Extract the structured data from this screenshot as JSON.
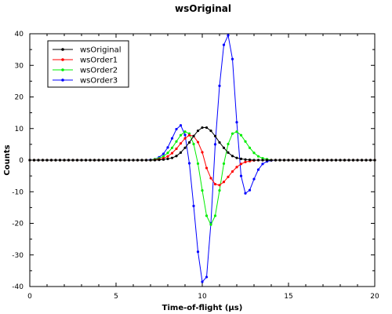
{
  "chart_data": {
    "type": "line",
    "title": "wsOriginal",
    "xlabel": "Time-of-flight (µs)",
    "ylabel": "Counts",
    "xlim": [
      0,
      20
    ],
    "ylim": [
      -40,
      40
    ],
    "x_ticks": [
      0,
      5,
      10,
      15,
      20
    ],
    "y_ticks": [
      -40,
      -30,
      -20,
      -10,
      0,
      10,
      20,
      30,
      40
    ],
    "grid": false,
    "legend_position": "top-left",
    "series": [
      {
        "name": "wsOriginal",
        "color": "#000000",
        "points": [
          [
            0,
            0
          ],
          [
            0.25,
            0
          ],
          [
            0.5,
            0
          ],
          [
            0.75,
            0
          ],
          [
            1,
            0
          ],
          [
            1.25,
            0
          ],
          [
            1.5,
            0
          ],
          [
            1.75,
            0
          ],
          [
            2,
            0
          ],
          [
            2.25,
            0
          ],
          [
            2.5,
            0
          ],
          [
            2.75,
            0
          ],
          [
            3,
            0
          ],
          [
            3.25,
            0
          ],
          [
            3.5,
            0
          ],
          [
            3.75,
            0
          ],
          [
            4,
            0
          ],
          [
            4.25,
            0
          ],
          [
            4.5,
            0
          ],
          [
            4.75,
            0
          ],
          [
            5,
            0
          ],
          [
            5.25,
            0
          ],
          [
            5.5,
            0
          ],
          [
            5.75,
            0
          ],
          [
            6,
            0
          ],
          [
            6.25,
            0
          ],
          [
            6.5,
            0
          ],
          [
            6.75,
            0
          ],
          [
            7,
            0
          ],
          [
            7.25,
            0
          ],
          [
            7.5,
            0.1
          ],
          [
            7.75,
            0.2
          ],
          [
            8,
            0.4
          ],
          [
            8.25,
            0.7
          ],
          [
            8.5,
            1.3
          ],
          [
            8.75,
            2.4
          ],
          [
            9,
            3.9
          ],
          [
            9.25,
            5.6
          ],
          [
            9.5,
            7.6
          ],
          [
            9.75,
            9.3
          ],
          [
            10,
            10.3
          ],
          [
            10.25,
            10.3
          ],
          [
            10.5,
            9.3
          ],
          [
            10.75,
            7.6
          ],
          [
            11,
            5.6
          ],
          [
            11.25,
            3.9
          ],
          [
            11.5,
            2.4
          ],
          [
            11.75,
            1.3
          ],
          [
            12,
            0.7
          ],
          [
            12.25,
            0.4
          ],
          [
            12.5,
            0.2
          ],
          [
            12.75,
            0.1
          ],
          [
            13,
            0
          ],
          [
            13.25,
            0
          ],
          [
            13.5,
            0
          ],
          [
            13.75,
            0
          ],
          [
            14,
            0
          ],
          [
            14.25,
            0
          ],
          [
            14.5,
            0
          ],
          [
            14.75,
            0
          ],
          [
            15,
            0
          ],
          [
            15.25,
            0
          ],
          [
            15.5,
            0
          ],
          [
            15.75,
            0
          ],
          [
            16,
            0
          ],
          [
            16.25,
            0
          ],
          [
            16.5,
            0
          ],
          [
            16.75,
            0
          ],
          [
            17,
            0
          ],
          [
            17.25,
            0
          ],
          [
            17.5,
            0
          ],
          [
            17.75,
            0
          ],
          [
            18,
            0
          ],
          [
            18.25,
            0
          ],
          [
            18.5,
            0
          ],
          [
            18.75,
            0
          ],
          [
            19,
            0
          ],
          [
            19.25,
            0
          ],
          [
            19.5,
            0
          ],
          [
            19.75,
            0
          ],
          [
            20,
            0
          ]
        ]
      },
      {
        "name": "wsOrder1",
        "color": "#ff0000",
        "points": [
          [
            0,
            0
          ],
          [
            0.25,
            0
          ],
          [
            0.5,
            0
          ],
          [
            0.75,
            0
          ],
          [
            1,
            0
          ],
          [
            1.25,
            0
          ],
          [
            1.5,
            0
          ],
          [
            1.75,
            0
          ],
          [
            2,
            0
          ],
          [
            2.25,
            0
          ],
          [
            2.5,
            0
          ],
          [
            2.75,
            0
          ],
          [
            3,
            0
          ],
          [
            3.25,
            0
          ],
          [
            3.5,
            0
          ],
          [
            3.75,
            0
          ],
          [
            4,
            0
          ],
          [
            4.25,
            0
          ],
          [
            4.5,
            0
          ],
          [
            4.75,
            0
          ],
          [
            5,
            0
          ],
          [
            5.25,
            0
          ],
          [
            5.5,
            0
          ],
          [
            5.75,
            0
          ],
          [
            6,
            0
          ],
          [
            6.25,
            0
          ],
          [
            6.5,
            0
          ],
          [
            6.75,
            0
          ],
          [
            7,
            0
          ],
          [
            7.25,
            0.1
          ],
          [
            7.5,
            0.3
          ],
          [
            7.75,
            0.6
          ],
          [
            8,
            1.2
          ],
          [
            8.25,
            2.2
          ],
          [
            8.5,
            3.6
          ],
          [
            8.75,
            5.3
          ],
          [
            9,
            6.9
          ],
          [
            9.25,
            7.9
          ],
          [
            9.5,
            7.6
          ],
          [
            9.75,
            5.7
          ],
          [
            10,
            2.5
          ],
          [
            10.25,
            -2.5
          ],
          [
            10.5,
            -5.7
          ],
          [
            10.75,
            -7.6
          ],
          [
            11,
            -7.9
          ],
          [
            11.25,
            -6.9
          ],
          [
            11.5,
            -5.3
          ],
          [
            11.75,
            -3.6
          ],
          [
            12,
            -2.2
          ],
          [
            12.25,
            -1.2
          ],
          [
            12.5,
            -0.6
          ],
          [
            12.75,
            -0.3
          ],
          [
            13,
            -0.1
          ],
          [
            13.25,
            0
          ],
          [
            13.5,
            0
          ],
          [
            13.75,
            0
          ],
          [
            14,
            0
          ],
          [
            14.25,
            0
          ],
          [
            14.5,
            0
          ],
          [
            14.75,
            0
          ],
          [
            15,
            0
          ],
          [
            15.25,
            0
          ],
          [
            15.5,
            0
          ],
          [
            15.75,
            0
          ],
          [
            16,
            0
          ],
          [
            16.25,
            0
          ],
          [
            16.5,
            0
          ],
          [
            16.75,
            0
          ],
          [
            17,
            0
          ],
          [
            17.25,
            0
          ],
          [
            17.5,
            0
          ],
          [
            17.75,
            0
          ],
          [
            18,
            0
          ],
          [
            18.25,
            0
          ],
          [
            18.5,
            0
          ],
          [
            18.75,
            0
          ],
          [
            19,
            0
          ],
          [
            19.25,
            0
          ],
          [
            19.5,
            0
          ],
          [
            19.75,
            0
          ],
          [
            20,
            0
          ]
        ]
      },
      {
        "name": "wsOrder2",
        "color": "#00ee00",
        "points": [
          [
            0,
            0
          ],
          [
            0.25,
            0
          ],
          [
            0.5,
            0
          ],
          [
            0.75,
            0
          ],
          [
            1,
            0
          ],
          [
            1.25,
            0
          ],
          [
            1.5,
            0
          ],
          [
            1.75,
            0
          ],
          [
            2,
            0
          ],
          [
            2.25,
            0
          ],
          [
            2.5,
            0
          ],
          [
            2.75,
            0
          ],
          [
            3,
            0
          ],
          [
            3.25,
            0
          ],
          [
            3.5,
            0
          ],
          [
            3.75,
            0
          ],
          [
            4,
            0
          ],
          [
            4.25,
            0
          ],
          [
            4.5,
            0
          ],
          [
            4.75,
            0
          ],
          [
            5,
            0
          ],
          [
            5.25,
            0
          ],
          [
            5.5,
            0
          ],
          [
            5.75,
            0
          ],
          [
            6,
            0
          ],
          [
            6.25,
            0
          ],
          [
            6.5,
            0
          ],
          [
            6.75,
            0
          ],
          [
            7,
            0
          ],
          [
            7.25,
            0.3
          ],
          [
            7.5,
            0.6
          ],
          [
            7.75,
            1.2
          ],
          [
            8,
            2.3
          ],
          [
            8.25,
            3.9
          ],
          [
            8.5,
            5.9
          ],
          [
            8.75,
            7.9
          ],
          [
            9,
            9.0
          ],
          [
            9.25,
            8.4
          ],
          [
            9.5,
            5.1
          ],
          [
            9.75,
            -1.1
          ],
          [
            10,
            -9.6
          ],
          [
            10.25,
            -17.6
          ],
          [
            10.5,
            -20.4
          ],
          [
            10.75,
            -17.6
          ],
          [
            11,
            -9.6
          ],
          [
            11.25,
            -1.1
          ],
          [
            11.5,
            5.1
          ],
          [
            11.75,
            8.4
          ],
          [
            12,
            9.0
          ],
          [
            12.25,
            7.9
          ],
          [
            12.5,
            5.9
          ],
          [
            12.75,
            3.9
          ],
          [
            13,
            2.3
          ],
          [
            13.25,
            1.2
          ],
          [
            13.5,
            0.6
          ],
          [
            13.75,
            0.3
          ],
          [
            14,
            0
          ],
          [
            14.25,
            0
          ],
          [
            14.5,
            0
          ],
          [
            14.75,
            0
          ],
          [
            15,
            0
          ],
          [
            15.25,
            0
          ],
          [
            15.5,
            0
          ],
          [
            15.75,
            0
          ],
          [
            16,
            0
          ],
          [
            16.25,
            0
          ],
          [
            16.5,
            0
          ],
          [
            16.75,
            0
          ],
          [
            17,
            0
          ],
          [
            17.25,
            0
          ],
          [
            17.5,
            0
          ],
          [
            17.75,
            0
          ],
          [
            18,
            0
          ],
          [
            18.25,
            0
          ],
          [
            18.5,
            0
          ],
          [
            18.75,
            0
          ],
          [
            19,
            0
          ],
          [
            19.25,
            0
          ],
          [
            19.5,
            0
          ],
          [
            19.75,
            0
          ],
          [
            20,
            0
          ]
        ]
      },
      {
        "name": "wsOrder3",
        "color": "#0000ff",
        "points": [
          [
            0,
            0
          ],
          [
            0.25,
            0
          ],
          [
            0.5,
            0
          ],
          [
            0.75,
            0
          ],
          [
            1,
            0
          ],
          [
            1.25,
            0
          ],
          [
            1.5,
            0
          ],
          [
            1.75,
            0
          ],
          [
            2,
            0
          ],
          [
            2.25,
            0
          ],
          [
            2.5,
            0
          ],
          [
            2.75,
            0
          ],
          [
            3,
            0
          ],
          [
            3.25,
            0
          ],
          [
            3.5,
            0
          ],
          [
            3.75,
            0
          ],
          [
            4,
            0
          ],
          [
            4.25,
            0
          ],
          [
            4.5,
            0
          ],
          [
            4.75,
            0
          ],
          [
            5,
            0
          ],
          [
            5.25,
            0
          ],
          [
            5.5,
            0
          ],
          [
            5.75,
            0
          ],
          [
            6,
            0
          ],
          [
            6.25,
            0
          ],
          [
            6.5,
            0
          ],
          [
            6.75,
            0
          ],
          [
            7,
            0.1
          ],
          [
            7.25,
            0.3
          ],
          [
            7.5,
            0.9
          ],
          [
            7.75,
            2.0
          ],
          [
            8,
            4.0
          ],
          [
            8.25,
            6.9
          ],
          [
            8.5,
            9.8
          ],
          [
            8.75,
            11.0
          ],
          [
            9,
            8.0
          ],
          [
            9.25,
            -1.0
          ],
          [
            9.5,
            -14.5
          ],
          [
            9.75,
            -29.0
          ],
          [
            10,
            -38.5
          ],
          [
            10.25,
            -37.0
          ],
          [
            10.5,
            -20.0
          ],
          [
            10.75,
            5.0
          ],
          [
            11,
            23.5
          ],
          [
            11.25,
            36.5
          ],
          [
            11.5,
            39.5
          ],
          [
            11.75,
            32.0
          ],
          [
            12,
            12.0
          ],
          [
            12.25,
            -5.0
          ],
          [
            12.5,
            -10.5
          ],
          [
            12.75,
            -9.5
          ],
          [
            13,
            -6.0
          ],
          [
            13.25,
            -3.0
          ],
          [
            13.5,
            -1.2
          ],
          [
            13.75,
            -0.4
          ],
          [
            14,
            -0.1
          ],
          [
            14.25,
            0
          ],
          [
            14.5,
            0
          ],
          [
            14.75,
            0
          ],
          [
            15,
            0
          ],
          [
            15.25,
            0
          ],
          [
            15.5,
            0
          ],
          [
            15.75,
            0
          ],
          [
            16,
            0
          ],
          [
            16.25,
            0
          ],
          [
            16.5,
            0
          ],
          [
            16.75,
            0
          ],
          [
            17,
            0
          ],
          [
            17.25,
            0
          ],
          [
            17.5,
            0
          ],
          [
            17.75,
            0
          ],
          [
            18,
            0
          ],
          [
            18.25,
            0
          ],
          [
            18.5,
            0
          ],
          [
            18.75,
            0
          ],
          [
            19,
            0
          ],
          [
            19.25,
            0
          ],
          [
            19.5,
            0
          ],
          [
            19.75,
            0
          ],
          [
            20,
            0
          ]
        ]
      }
    ]
  }
}
